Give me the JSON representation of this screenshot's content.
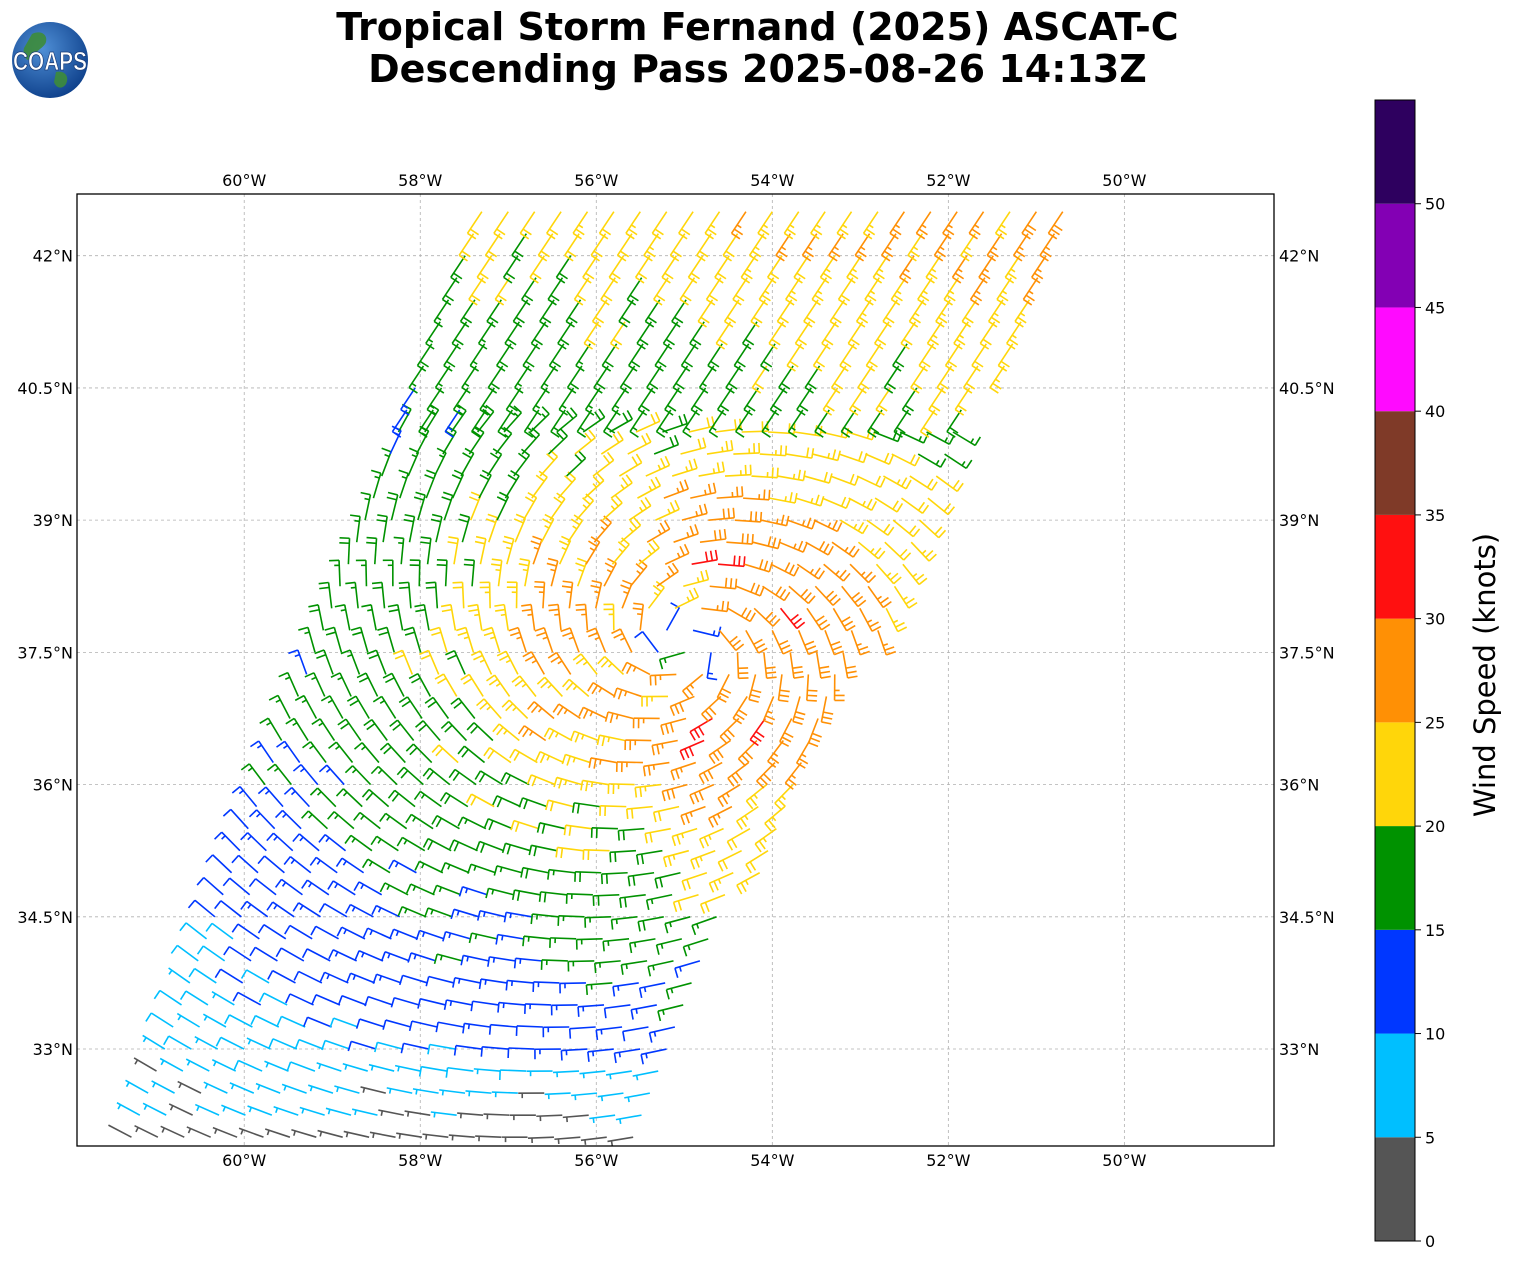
{
  "title": {
    "line1": "Tropical Storm Fernand (2025) ASCAT-C",
    "line2": "Descending Pass 2025-08-26 14:13Z"
  },
  "logo": {
    "text": "COAPS",
    "icon": "globe-icon"
  },
  "map": {
    "lon_range": [
      -61.9,
      -48.3
    ],
    "lat_range": [
      31.9,
      42.7
    ],
    "lon_ticks": [
      {
        "value": -60,
        "label": "60°W"
      },
      {
        "value": -58,
        "label": "58°W"
      },
      {
        "value": -56,
        "label": "56°W"
      },
      {
        "value": -54,
        "label": "54°W"
      },
      {
        "value": -52,
        "label": "52°W"
      },
      {
        "value": -50,
        "label": "50°W"
      }
    ],
    "lat_ticks": [
      {
        "value": 42,
        "label": "42°N"
      },
      {
        "value": 40.5,
        "label": "40.5°N"
      },
      {
        "value": 39,
        "label": "39°N"
      },
      {
        "value": 37.5,
        "label": "37.5°N"
      },
      {
        "value": 36,
        "label": "36°N"
      },
      {
        "value": 34.5,
        "label": "34.5°N"
      },
      {
        "value": 33,
        "label": "33°N"
      }
    ],
    "grid": true,
    "storm_center": {
      "lon": -55.0,
      "lat": 37.6
    },
    "swath": {
      "bottom_left": {
        "lon": -61.3,
        "lat": 31.95
      },
      "bottom_right": {
        "lon": -55.6,
        "lat": 31.95
      },
      "top_left": {
        "lon": -57.3,
        "lat": 42.5
      },
      "top_right": {
        "lon": -50.5,
        "lat": 42.5
      }
    },
    "wind_barbs": "wind barbs colored by speed"
  },
  "colorbar": {
    "title": "Wind Speed (knots)",
    "range": [
      0,
      55
    ],
    "bins": [
      {
        "min": 0,
        "max": 5,
        "color": "#555555"
      },
      {
        "min": 5,
        "max": 10,
        "color": "#00bfff"
      },
      {
        "min": 10,
        "max": 15,
        "color": "#0037ff"
      },
      {
        "min": 15,
        "max": 20,
        "color": "#009200"
      },
      {
        "min": 20,
        "max": 25,
        "color": "#ffd60a"
      },
      {
        "min": 25,
        "max": 30,
        "color": "#ff9005"
      },
      {
        "min": 30,
        "max": 35,
        "color": "#ff1010"
      },
      {
        "min": 35,
        "max": 40,
        "color": "#7f3a28"
      },
      {
        "min": 40,
        "max": 45,
        "color": "#ff0aff"
      },
      {
        "min": 45,
        "max": 50,
        "color": "#8300b4"
      },
      {
        "min": 50,
        "max": 55,
        "color": "#2e005f"
      }
    ],
    "tick_labels": [
      "0",
      "5",
      "10",
      "15",
      "20",
      "25",
      "30",
      "35",
      "40",
      "45",
      "50"
    ]
  }
}
